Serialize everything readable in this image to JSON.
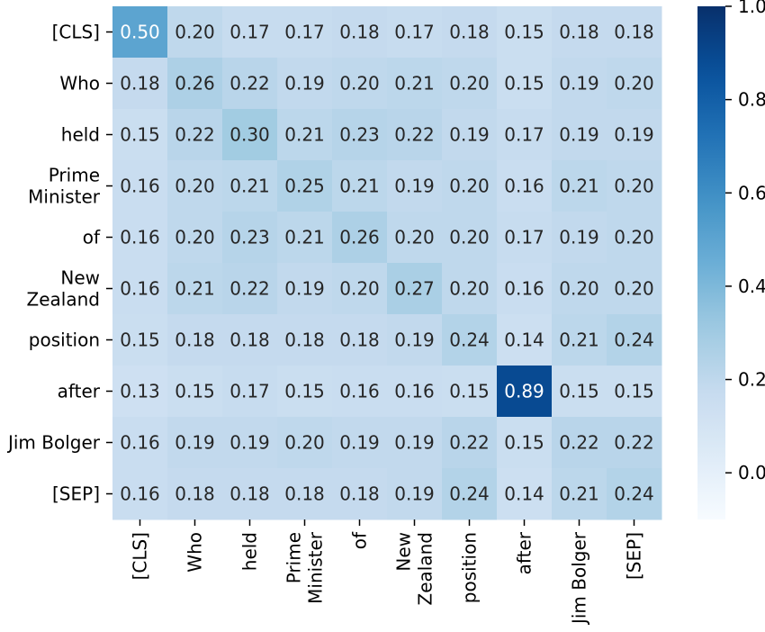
{
  "chart_data": {
    "type": "heatmap",
    "title": "",
    "xlabel": "",
    "ylabel": "",
    "row_labels": [
      "[CLS]",
      "Who",
      "held",
      "Prime Minister",
      "of",
      "New Zealand",
      "position",
      "after",
      "Jim Bolger",
      "[SEP]"
    ],
    "col_labels": [
      "[CLS]",
      "Who",
      "held",
      "Prime Minister",
      "of",
      "New Zealand",
      "position",
      "after",
      "Jim Bolger",
      "[SEP]"
    ],
    "values": [
      [
        0.5,
        0.2,
        0.17,
        0.17,
        0.18,
        0.17,
        0.18,
        0.15,
        0.18,
        0.18
      ],
      [
        0.18,
        0.26,
        0.22,
        0.19,
        0.2,
        0.21,
        0.2,
        0.15,
        0.19,
        0.2
      ],
      [
        0.15,
        0.22,
        0.3,
        0.21,
        0.23,
        0.22,
        0.19,
        0.17,
        0.19,
        0.19
      ],
      [
        0.16,
        0.2,
        0.21,
        0.25,
        0.21,
        0.19,
        0.2,
        0.16,
        0.21,
        0.2
      ],
      [
        0.16,
        0.2,
        0.23,
        0.21,
        0.26,
        0.2,
        0.2,
        0.17,
        0.19,
        0.2
      ],
      [
        0.16,
        0.21,
        0.22,
        0.19,
        0.2,
        0.27,
        0.2,
        0.16,
        0.2,
        0.2
      ],
      [
        0.15,
        0.18,
        0.18,
        0.18,
        0.18,
        0.19,
        0.24,
        0.14,
        0.21,
        0.24
      ],
      [
        0.13,
        0.15,
        0.17,
        0.15,
        0.16,
        0.16,
        0.15,
        0.89,
        0.15,
        0.15
      ],
      [
        0.16,
        0.19,
        0.19,
        0.2,
        0.19,
        0.19,
        0.22,
        0.15,
        0.22,
        0.22
      ],
      [
        0.16,
        0.18,
        0.18,
        0.18,
        0.18,
        0.19,
        0.24,
        0.14,
        0.21,
        0.24
      ]
    ],
    "value_format": "0.00",
    "colormap": "Blues",
    "colorbar": {
      "range": [
        -0.1,
        1.0
      ],
      "ticks": [
        "0.0",
        "0.2",
        "0.4",
        "0.6",
        "0.8",
        "1.0"
      ],
      "tick_values": [
        0.0,
        0.2,
        0.4,
        0.6,
        0.8,
        1.0
      ]
    },
    "annotation_colors": {
      "dark_text": "#262626",
      "light_text": "#ffffff"
    },
    "grid": false,
    "legend": "colorbar-right"
  }
}
